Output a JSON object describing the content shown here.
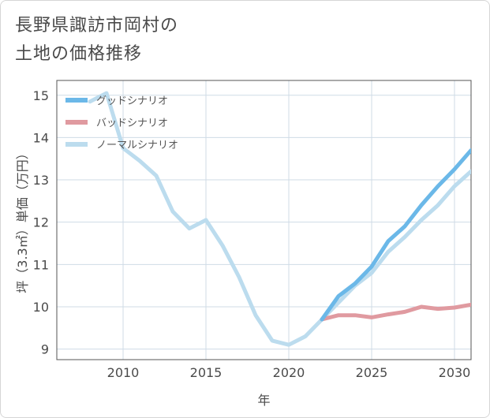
{
  "title_lines": [
    "長野県諏訪市岡村の",
    "土地の価格推移"
  ],
  "chart_data": {
    "type": "line",
    "xlabel": "年",
    "ylabel": "坪（3.3㎡）単価（万円）",
    "xlim": [
      2006,
      2031
    ],
    "ylim": [
      8.75,
      15.35
    ],
    "xticks": [
      2010,
      2015,
      2020,
      2025,
      2030
    ],
    "yticks": [
      9,
      10,
      11,
      12,
      13,
      14,
      15
    ],
    "grid": true,
    "legend_position": "top-left",
    "series": [
      {
        "name": "グッドシナリオ",
        "color": "#6bb8e8",
        "x": [
          2022,
          2023,
          2024,
          2025,
          2026,
          2027,
          2028,
          2029,
          2030,
          2031
        ],
        "y": [
          9.7,
          10.25,
          10.55,
          10.95,
          11.55,
          11.9,
          12.4,
          12.85,
          13.25,
          13.7
        ]
      },
      {
        "name": "バッドシナリオ",
        "color": "#e09aa0",
        "x": [
          2022,
          2023,
          2024,
          2025,
          2026,
          2027,
          2028,
          2029,
          2030,
          2031
        ],
        "y": [
          9.7,
          9.8,
          9.8,
          9.75,
          9.82,
          9.88,
          10.0,
          9.95,
          9.98,
          10.05
        ]
      },
      {
        "name": "ノーマルシナリオ",
        "color": "#bcdcee",
        "x": [
          2008,
          2009,
          2010,
          2011,
          2012,
          2013,
          2014,
          2015,
          2016,
          2017,
          2018,
          2019,
          2020,
          2021,
          2022,
          2023,
          2024,
          2025,
          2026,
          2027,
          2028,
          2029,
          2030,
          2031
        ],
        "y": [
          14.85,
          15.05,
          13.75,
          13.45,
          13.1,
          12.25,
          11.85,
          12.05,
          11.45,
          10.7,
          9.8,
          9.2,
          9.1,
          9.3,
          9.7,
          10.1,
          10.5,
          10.8,
          11.3,
          11.65,
          12.05,
          12.4,
          12.85,
          13.2
        ]
      }
    ]
  }
}
